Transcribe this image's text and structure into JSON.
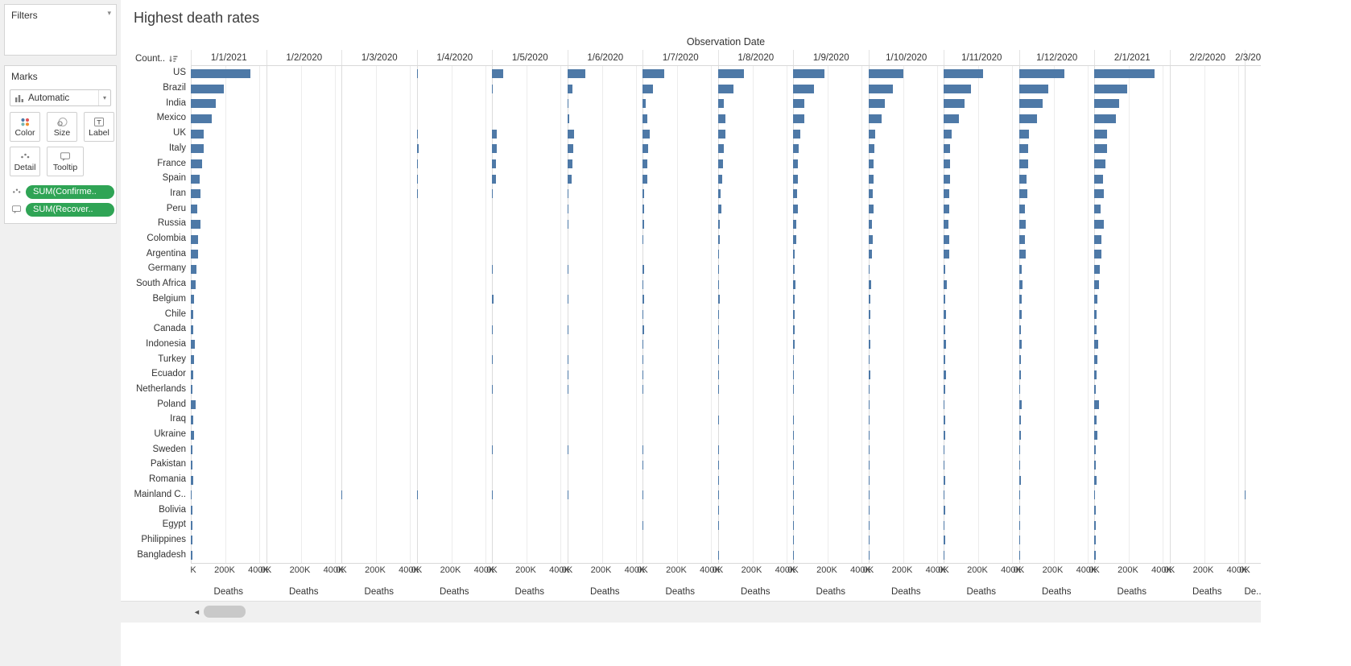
{
  "left_panel": {
    "filters": {
      "title": "Filters"
    },
    "marks": {
      "title": "Marks",
      "mark_type_selector": {
        "value": "Automatic",
        "icon": "bar-chart-icon"
      },
      "buttons": [
        {
          "label": "Color",
          "icon": "color-dots-icon"
        },
        {
          "label": "Size",
          "icon": "size-circles-icon"
        },
        {
          "label": "Label",
          "icon": "label-text-icon"
        },
        {
          "label": "Detail",
          "icon": "detail-dots-icon"
        },
        {
          "label": "Tooltip",
          "icon": "tooltip-bubble-icon"
        }
      ],
      "pills": [
        {
          "label": "SUM(Confirme..",
          "shelf_icon": "detail-dots-icon"
        },
        {
          "label": "SUM(Recover..",
          "shelf_icon": "tooltip-bubble-icon"
        }
      ],
      "pill_color": "#2fa455"
    }
  },
  "sheet": {
    "title": "Highest death rates",
    "column_field_label": "Observation Date",
    "row_field_label": "Count..",
    "sort_icon": "sort-descending-icon"
  },
  "scrollbar": {
    "left_arrow_icon": "◄"
  },
  "chart_data": {
    "type": "bar",
    "orientation": "horizontal",
    "title": "Highest death rates",
    "column_field": "Observation Date",
    "xlabel": "Deaths",
    "axis_label_truncated": "De..",
    "bar_color": "#4e79a7",
    "xlim": [
      0,
      445000
    ],
    "x_ticks": [
      {
        "label": "0K",
        "value": 0
      },
      {
        "label": "200K",
        "value": 200000
      },
      {
        "label": "400K",
        "value": 400000
      }
    ],
    "grid": true,
    "last_column_partial": true,
    "countries": [
      "US",
      "Brazil",
      "India",
      "Mexico",
      "UK",
      "Italy",
      "France",
      "Spain",
      "Iran",
      "Peru",
      "Russia",
      "Colombia",
      "Argentina",
      "Germany",
      "South Africa",
      "Belgium",
      "Chile",
      "Canada",
      "Indonesia",
      "Turkey",
      "Ecuador",
      "Netherlands",
      "Poland",
      "Iraq",
      "Ukraine",
      "Sweden",
      "Pakistan",
      "Romania",
      "Mainland C..",
      "Bolivia",
      "Egypt",
      "Philippines",
      "Bangladesh"
    ],
    "columns": [
      {
        "date": "1/1/2021",
        "values": [
          352000,
          194900,
          148700,
          125800,
          74200,
          74200,
          64700,
          50800,
          55300,
          37500,
          56300,
          42600,
          43200,
          33600,
          28500,
          19600,
          16500,
          15600,
          22100,
          20900,
          14000,
          11500,
          28500,
          12800,
          18500,
          8700,
          10000,
          15300,
          4800,
          9200,
          7600,
          9200,
          7600
        ]
      },
      {
        "date": "1/2/2020",
        "values": [
          0,
          0,
          0,
          0,
          0,
          0,
          0,
          0,
          0,
          0,
          0,
          0,
          0,
          0,
          0,
          0,
          0,
          0,
          0,
          0,
          0,
          0,
          0,
          0,
          0,
          0,
          0,
          0,
          259,
          0,
          0,
          1,
          0
        ]
      },
      {
        "date": "1/3/2020",
        "values": [
          1,
          0,
          0,
          0,
          0,
          34,
          2,
          0,
          54,
          0,
          0,
          0,
          0,
          0,
          0,
          0,
          0,
          0,
          0,
          0,
          0,
          0,
          0,
          0,
          0,
          0,
          0,
          0,
          2870,
          0,
          0,
          1,
          0
        ]
      },
      {
        "date": "1/4/2020",
        "values": [
          5100,
          240,
          58,
          37,
          2400,
          13155,
          4032,
          9387,
          3036,
          24,
          17,
          16,
          28,
          775,
          5,
          705,
          12,
          109,
          157,
          214,
          93,
          1039,
          33,
          54,
          17,
          180,
          26,
          94,
          3312,
          6,
          41,
          88,
          5
        ]
      },
      {
        "date": "1/5/2020",
        "values": [
          64700,
          6006,
          1223,
          1972,
          27510,
          28236,
          24594,
          24824,
          6091,
          1051,
          1073,
          314,
          218,
          6623,
          103,
          7844,
          227,
          3391,
          792,
          3174,
          883,
          4893,
          644,
          93,
          272,
          2653,
          385,
          717,
          4633,
          59,
          392,
          568,
          168
        ]
      },
      {
        "date": "1/6/2020",
        "values": [
          106000,
          29314,
          5394,
          10167,
          38571,
          33475,
          28833,
          27127,
          7878,
          4634,
          4855,
          1045,
          530,
          8530,
          705,
          9467,
          1054,
          7295,
          1613,
          4540,
          3358,
          5962,
          1061,
          205,
          696,
          4403,
          1483,
          1262,
          4638,
          313,
          1088,
          957,
          672
        ]
      },
      {
        "date": "1/7/2020",
        "values": [
          127000,
          59594,
          17834,
          28510,
          43991,
          34767,
          29875,
          28363,
          10817,
          9860,
          9536,
          3334,
          1280,
          8995,
          2749,
          9761,
          5575,
          8591,
          2876,
          5131,
          4527,
          6113,
          1444,
          1943,
          1173,
          5333,
          4395,
          1651,
          4641,
          1071,
          2789,
          1266,
          1847
        ]
      },
      {
        "date": "1/8/2020",
        "values": [
          154000,
          92568,
          37364,
          47472,
          46278,
          35146,
          30265,
          28445,
          17057,
          19408,
          14058,
          9810,
          3441,
          9154,
          8005,
          9840,
          9457,
          8981,
          5302,
          5691,
          5702,
          6147,
          1738,
          4458,
          1738,
          5743,
          5951,
          2343,
          4665,
          3064,
          4805,
          2115,
          3111
        ]
      },
      {
        "date": "1/9/2020",
        "values": [
          184000,
          122596,
          66333,
          64414,
          41504,
          35491,
          30661,
          29094,
          21571,
          28944,
          17414,
          19663,
          8919,
          9313,
          14149,
          9897,
          11289,
          9126,
          7505,
          6326,
          6555,
          6244,
          2039,
          7042,
          2605,
          5821,
          6370,
          3507,
          4729,
          5027,
          5421,
          3558,
          4351
        ]
      },
      {
        "date": "1/10/2020",
        "values": [
          207000,
          144680,
          99773,
          78078,
          42292,
          35918,
          31956,
          31973,
          26169,
          32463,
          20722,
          25998,
          20599,
          9517,
          16734,
          10044,
          12725,
          9297,
          10601,
          8130,
          11355,
          6420,
          2483,
          9122,
          4193,
          5895,
          6484,
          4862,
          4739,
          7965,
          5914,
          5504,
          5251
        ]
      },
      {
        "date": "1/11/2020",
        "values": [
          231000,
          159884,
          122111,
          91895,
          46807,
          38826,
          37435,
          35878,
          35298,
          34476,
          28235,
          31135,
          31002,
          10481,
          19411,
          11737,
          14207,
          10288,
          13869,
          10177,
          12588,
          7434,
          5631,
          10724,
          7515,
          5938,
          6795,
          7153,
          4742,
          8687,
          6234,
          7269,
          5983
        ]
      },
      {
        "date": "1/12/2020",
        "values": [
          268000,
          173120,
          138122,
          105655,
          59296,
          55576,
          52850,
          45511,
          48628,
          35923,
          40050,
          36514,
          38473,
          16636,
          21439,
          16547,
          15430,
          12032,
          17199,
          13746,
          13316,
          9326,
          17029,
          12125,
          12093,
          6681,
          8091,
          11331,
          4742,
          8989,
          6732,
          8392,
          6644
        ]
      },
      {
        "date": "2/1/2021",
        "values": [
          356000,
          195441,
          149218,
          126851,
          74832,
          74621,
          64892,
          50837,
          55438,
          37680,
          57019,
          42909,
          43245,
          34145,
          29175,
          19674,
          16608,
          15734,
          22138,
          21093,
          14051,
          11525,
          28956,
          12829,
          18680,
          8727,
          10047,
          15469,
          4794,
          9211,
          7631,
          9248,
          7599
        ]
      },
      {
        "date": "2/2/2020",
        "values": [
          0,
          0,
          0,
          0,
          0,
          0,
          0,
          0,
          0,
          0,
          0,
          0,
          0,
          0,
          0,
          0,
          0,
          0,
          0,
          0,
          0,
          0,
          0,
          0,
          0,
          0,
          0,
          0,
          361,
          0,
          0,
          1,
          0
        ]
      },
      {
        "date": "2/3/2020",
        "values": [
          6,
          0,
          0,
          0,
          0,
          52,
          3,
          0,
          66,
          0,
          0,
          0,
          0,
          0,
          0,
          0,
          0,
          0,
          0,
          0,
          0,
          0,
          0,
          0,
          0,
          0,
          0,
          0,
          2912,
          0,
          0,
          1,
          0
        ]
      }
    ]
  }
}
